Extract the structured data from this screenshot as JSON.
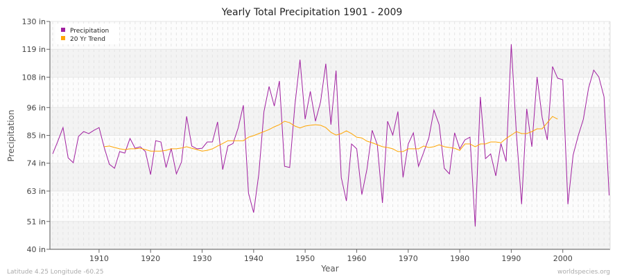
{
  "chart_data": {
    "type": "line",
    "title": "Yearly Total Precipitation 1901 - 2009",
    "xlabel": "Year",
    "ylabel": "Precipitation",
    "xlim": [
      1901,
      2009
    ],
    "ylim": [
      40,
      130
    ],
    "yticks": [
      40,
      51,
      63,
      74,
      85,
      96,
      108,
      119,
      130
    ],
    "ytick_labels": [
      "40 in",
      "51 in",
      "63 in",
      "74 in",
      "85 in",
      "96 in",
      "108 in",
      "119 in",
      "130 in"
    ],
    "xticks": [
      1910,
      1920,
      1930,
      1940,
      1950,
      1960,
      1970,
      1980,
      1990,
      2000
    ],
    "xtick_labels": [
      "1910",
      "1920",
      "1930",
      "1940",
      "1950",
      "1960",
      "1970",
      "1980",
      "1990",
      "2000"
    ],
    "grid": true,
    "legend_placement": "top-left",
    "series": [
      {
        "name": "Precipitation",
        "color": "#a020a0",
        "start_year": 1901,
        "values": [
          77.7,
          82.7,
          88.1,
          76.1,
          74.2,
          84.6,
          86.5,
          85.7,
          87.0,
          88.1,
          80.2,
          73.6,
          72.0,
          78.6,
          78.0,
          83.8,
          79.9,
          80.5,
          78.6,
          69.5,
          82.9,
          82.4,
          72.3,
          79.9,
          69.8,
          74.5,
          92.5,
          80.8,
          79.7,
          79.9,
          82.4,
          82.4,
          90.3,
          71.5,
          80.8,
          81.8,
          87.9,
          96.9,
          62.2,
          54.5,
          69.8,
          94.4,
          104.3,
          96.6,
          106.5,
          72.8,
          72.3,
          96.9,
          114.9,
          91.4,
          102.4,
          90.6,
          98.3,
          113.3,
          89.2,
          110.6,
          68.4,
          59.1,
          81.6,
          79.7,
          61.6,
          71.7,
          87.0,
          81.3,
          58.3,
          90.6,
          85.1,
          94.4,
          68.4,
          81.6,
          86.0,
          72.8,
          78.3,
          84.0,
          95.0,
          89.2,
          72.0,
          69.8,
          86.0,
          79.7,
          83.2,
          84.3,
          49.0,
          100.2,
          75.8,
          77.7,
          69.0,
          81.8,
          74.7,
          121.0,
          85.7,
          57.8,
          95.5,
          80.5,
          108.1,
          92.0,
          83.2,
          112.2,
          107.6,
          107.0,
          57.8,
          77.2,
          84.9,
          91.4,
          103.7,
          110.8,
          108.1,
          100.2,
          61.3
        ]
      },
      {
        "name": "20 Yr Trend",
        "color": "#ffa500",
        "start_year": 1911,
        "values": [
          80.5,
          80.8,
          80.2,
          79.7,
          79.4,
          79.7,
          79.7,
          79.9,
          79.4,
          78.8,
          78.8,
          78.8,
          79.1,
          79.7,
          79.7,
          80.0,
          80.5,
          79.9,
          79.4,
          78.8,
          79.1,
          79.7,
          80.8,
          81.8,
          82.9,
          82.9,
          82.9,
          82.9,
          84.3,
          84.9,
          85.7,
          86.5,
          87.3,
          88.4,
          89.2,
          90.6,
          90.0,
          88.7,
          87.9,
          88.7,
          89.0,
          89.2,
          89.0,
          88.1,
          86.2,
          85.1,
          85.7,
          86.8,
          85.7,
          84.3,
          84.0,
          82.7,
          82.1,
          81.3,
          80.5,
          80.2,
          79.7,
          78.6,
          78.6,
          79.7,
          79.7,
          79.7,
          80.8,
          80.2,
          80.5,
          81.3,
          80.5,
          80.2,
          79.9,
          79.1,
          81.6,
          81.6,
          80.5,
          81.6,
          81.6,
          82.4,
          82.4,
          82.1,
          83.8,
          85.1,
          86.5,
          85.7,
          85.7,
          86.5,
          87.6,
          87.6,
          90.0,
          92.5,
          91.4
        ]
      }
    ]
  },
  "footer": {
    "location": "Latitude 4.25 Longitude -60.25",
    "site": "worldspecies.org"
  }
}
